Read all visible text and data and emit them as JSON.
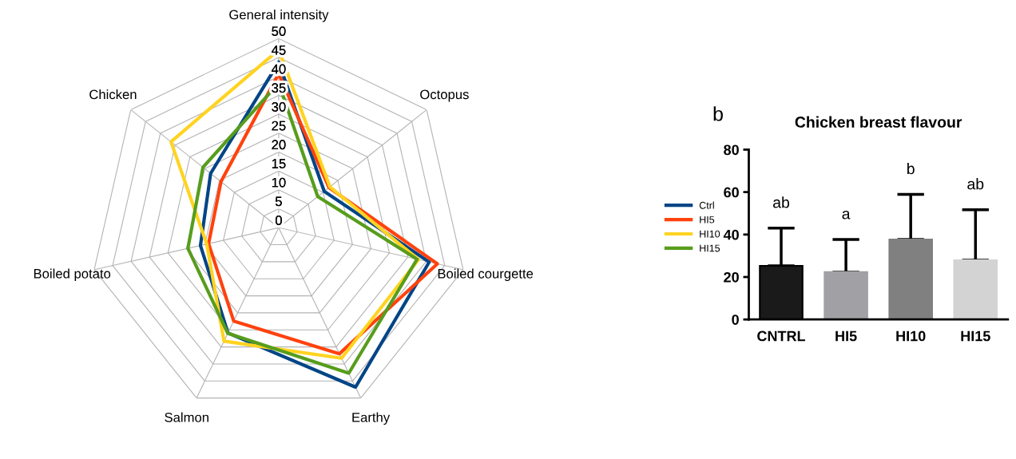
{
  "chart_data": [
    {
      "type": "radar",
      "categories": [
        "General intensity",
        "Octopus",
        "Boiled courgette",
        "Earthy",
        "Salmon",
        "Boiled potato",
        "Chicken"
      ],
      "series": [
        {
          "name": "Ctrl",
          "color": "#004586",
          "values": [
            43.7,
            15.4,
            40.8,
            46.8,
            30.9,
            21.2,
            23
          ]
        },
        {
          "name": "HI5",
          "color": "#ff420e",
          "values": [
            40.7,
            17,
            43,
            37,
            27.4,
            19,
            19.5
          ]
        },
        {
          "name": "HI10",
          "color": "#ffd320",
          "values": [
            47,
            17.3,
            37.9,
            38.3,
            33.3,
            19.5,
            36.4
          ]
        },
        {
          "name": "HI15",
          "color": "#579d1c",
          "values": [
            38.2,
            13.2,
            37.5,
            42.7,
            31,
            24.6,
            25.6
          ]
        }
      ],
      "ylim": [
        0,
        50
      ],
      "yticks": [
        0,
        5,
        10,
        15,
        20,
        25,
        30,
        35,
        40,
        45,
        50
      ],
      "grid": true,
      "legend": "right",
      "marker": "none",
      "line_style": "solid"
    },
    {
      "type": "bar",
      "title": "Chicken breast flavour",
      "categories": [
        "CNTRL",
        "HI5",
        "HI10",
        "HI15"
      ],
      "values": [
        25.3,
        22.3,
        37.7,
        27.9
      ],
      "colors": [
        "#1a1a1a",
        "#a0a0a5",
        "#808080",
        "#d3d3d3"
      ],
      "errors": [
        [
          25.3,
          43
        ],
        [
          22.3,
          37.7
        ],
        [
          37.7,
          58.9
        ],
        [
          27.9,
          51.7
        ]
      ],
      "ylim": [
        0,
        80
      ],
      "yticks": [
        0,
        20,
        40,
        60,
        80
      ],
      "grid": false,
      "annotations": [
        "b",
        "ab",
        "a",
        "b",
        "ab"
      ]
    }
  ]
}
